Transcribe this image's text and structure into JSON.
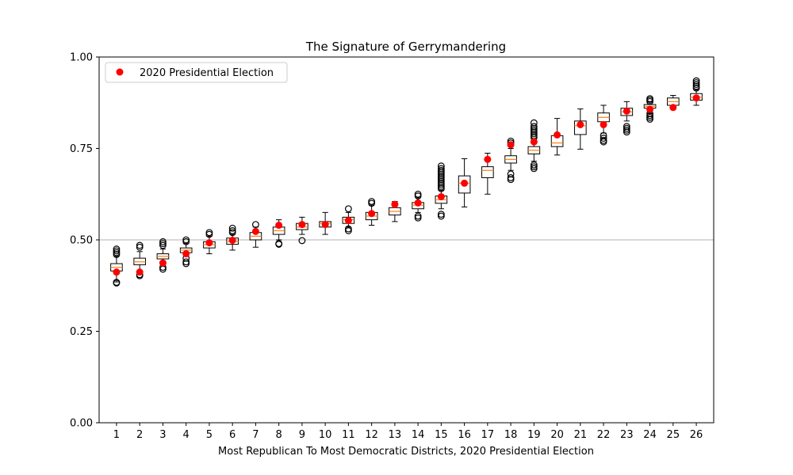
{
  "chart_data": {
    "type": "box",
    "title": "The Signature of Gerrymandering",
    "xlabel": "Most Republican To Most Democratic Districts, 2020 Presidential Election",
    "ylabel": "",
    "ylim": [
      0,
      1
    ],
    "yticks": [
      "0.00",
      "0.25",
      "0.50",
      "0.75",
      "1.00"
    ],
    "reference_line": 0.5,
    "legend": {
      "label": "2020 Presidential Election",
      "placement": "top-left"
    },
    "categories": [
      "1",
      "2",
      "3",
      "4",
      "5",
      "6",
      "7",
      "8",
      "9",
      "10",
      "11",
      "12",
      "13",
      "14",
      "15",
      "16",
      "17",
      "18",
      "19",
      "20",
      "21",
      "22",
      "23",
      "24",
      "25",
      "26"
    ],
    "boxes": [
      {
        "whisker_low": 0.385,
        "q1": 0.415,
        "median": 0.425,
        "q3": 0.435,
        "whisker_high": 0.455,
        "fliers": [
          0.384,
          0.382,
          0.46,
          0.465,
          0.47,
          0.475
        ]
      },
      {
        "whisker_low": 0.415,
        "q1": 0.432,
        "median": 0.44,
        "q3": 0.45,
        "whisker_high": 0.468,
        "fliers": [
          0.405,
          0.402,
          0.48,
          0.485
        ]
      },
      {
        "whisker_low": 0.435,
        "q1": 0.448,
        "median": 0.455,
        "q3": 0.462,
        "whisker_high": 0.475,
        "fliers": [
          0.42,
          0.425,
          0.485,
          0.49,
          0.495
        ]
      },
      {
        "whisker_low": 0.455,
        "q1": 0.465,
        "median": 0.472,
        "q3": 0.478,
        "whisker_high": 0.49,
        "fliers": [
          0.435,
          0.44,
          0.45,
          0.495,
          0.5
        ]
      },
      {
        "whisker_low": 0.462,
        "q1": 0.478,
        "median": 0.487,
        "q3": 0.495,
        "whisker_high": 0.51,
        "fliers": [
          0.515,
          0.52
        ]
      },
      {
        "whisker_low": 0.472,
        "q1": 0.488,
        "median": 0.495,
        "q3": 0.505,
        "whisker_high": 0.515,
        "fliers": [
          0.52,
          0.525,
          0.532
        ]
      },
      {
        "whisker_low": 0.48,
        "q1": 0.5,
        "median": 0.51,
        "q3": 0.52,
        "whisker_high": 0.535,
        "fliers": [
          0.542
        ]
      },
      {
        "whisker_low": 0.5,
        "q1": 0.515,
        "median": 0.525,
        "q3": 0.535,
        "whisker_high": 0.555,
        "fliers": [
          0.49,
          0.488
        ]
      },
      {
        "whisker_low": 0.515,
        "q1": 0.528,
        "median": 0.535,
        "q3": 0.545,
        "whisker_high": 0.562,
        "fliers": [
          0.498
        ]
      },
      {
        "whisker_low": 0.515,
        "q1": 0.535,
        "median": 0.545,
        "q3": 0.55,
        "whisker_high": 0.575,
        "fliers": []
      },
      {
        "whisker_low": 0.535,
        "q1": 0.545,
        "median": 0.555,
        "q3": 0.562,
        "whisker_high": 0.575,
        "fliers": [
          0.525,
          0.53,
          0.585
        ]
      },
      {
        "whisker_low": 0.54,
        "q1": 0.555,
        "median": 0.565,
        "q3": 0.575,
        "whisker_high": 0.595,
        "fliers": [
          0.6,
          0.605
        ]
      },
      {
        "whisker_low": 0.55,
        "q1": 0.568,
        "median": 0.578,
        "q3": 0.588,
        "whisker_high": 0.605,
        "fliers": []
      },
      {
        "whisker_low": 0.575,
        "q1": 0.585,
        "median": 0.595,
        "q3": 0.602,
        "whisker_high": 0.615,
        "fliers": [
          0.56,
          0.565,
          0.62,
          0.625
        ]
      },
      {
        "whisker_low": 0.585,
        "q1": 0.6,
        "median": 0.61,
        "q3": 0.62,
        "whisker_high": 0.635,
        "fliers": [
          0.565,
          0.57,
          0.64,
          0.645,
          0.65,
          0.655,
          0.66,
          0.665,
          0.67,
          0.675,
          0.68,
          0.685,
          0.69,
          0.695,
          0.702
        ]
      },
      {
        "whisker_low": 0.59,
        "q1": 0.628,
        "median": 0.655,
        "q3": 0.675,
        "whisker_high": 0.722,
        "fliers": []
      },
      {
        "whisker_low": 0.625,
        "q1": 0.67,
        "median": 0.69,
        "q3": 0.7,
        "whisker_high": 0.737,
        "fliers": []
      },
      {
        "whisker_low": 0.69,
        "q1": 0.71,
        "median": 0.72,
        "q3": 0.73,
        "whisker_high": 0.75,
        "fliers": [
          0.665,
          0.67,
          0.68,
          0.76,
          0.765,
          0.77
        ]
      },
      {
        "whisker_low": 0.715,
        "q1": 0.735,
        "median": 0.745,
        "q3": 0.755,
        "whisker_high": 0.775,
        "fliers": [
          0.695,
          0.7,
          0.705,
          0.78,
          0.785,
          0.79,
          0.795,
          0.8,
          0.805,
          0.81,
          0.82
        ]
      },
      {
        "whisker_low": 0.732,
        "q1": 0.755,
        "median": 0.765,
        "q3": 0.785,
        "whisker_high": 0.832,
        "fliers": []
      },
      {
        "whisker_low": 0.748,
        "q1": 0.788,
        "median": 0.812,
        "q3": 0.825,
        "whisker_high": 0.858,
        "fliers": []
      },
      {
        "whisker_low": 0.792,
        "q1": 0.823,
        "median": 0.835,
        "q3": 0.847,
        "whisker_high": 0.868,
        "fliers": [
          0.768,
          0.772,
          0.778,
          0.785
        ]
      },
      {
        "whisker_low": 0.825,
        "q1": 0.84,
        "median": 0.85,
        "q3": 0.86,
        "whisker_high": 0.878,
        "fliers": [
          0.795,
          0.8,
          0.805,
          0.81
        ]
      },
      {
        "whisker_low": 0.845,
        "q1": 0.86,
        "median": 0.865,
        "q3": 0.87,
        "whisker_high": 0.878,
        "fliers": [
          0.83,
          0.835,
          0.84,
          0.845,
          0.878,
          0.882,
          0.886
        ]
      },
      {
        "whisker_low": 0.858,
        "q1": 0.868,
        "median": 0.878,
        "q3": 0.888,
        "whisker_high": 0.895,
        "fliers": []
      },
      {
        "whisker_low": 0.868,
        "q1": 0.882,
        "median": 0.89,
        "q3": 0.9,
        "whisker_high": 0.91,
        "fliers": [
          0.915,
          0.92,
          0.925,
          0.93,
          0.935
        ]
      }
    ],
    "series": [
      {
        "name": "2020 Presidential Election",
        "color": "#ff0000",
        "values": [
          0.412,
          0.412,
          0.437,
          0.462,
          0.492,
          0.499,
          0.523,
          0.54,
          0.542,
          0.542,
          0.553,
          0.572,
          0.597,
          0.601,
          0.618,
          0.655,
          0.72,
          0.76,
          0.768,
          0.787,
          0.815,
          0.815,
          0.852,
          0.857,
          0.862,
          0.888
        ]
      }
    ],
    "colors": {
      "box_edge": "#000000",
      "median": "#ff7f0e",
      "point": "#ff0000",
      "reference_line": "#c0c0c0"
    }
  }
}
